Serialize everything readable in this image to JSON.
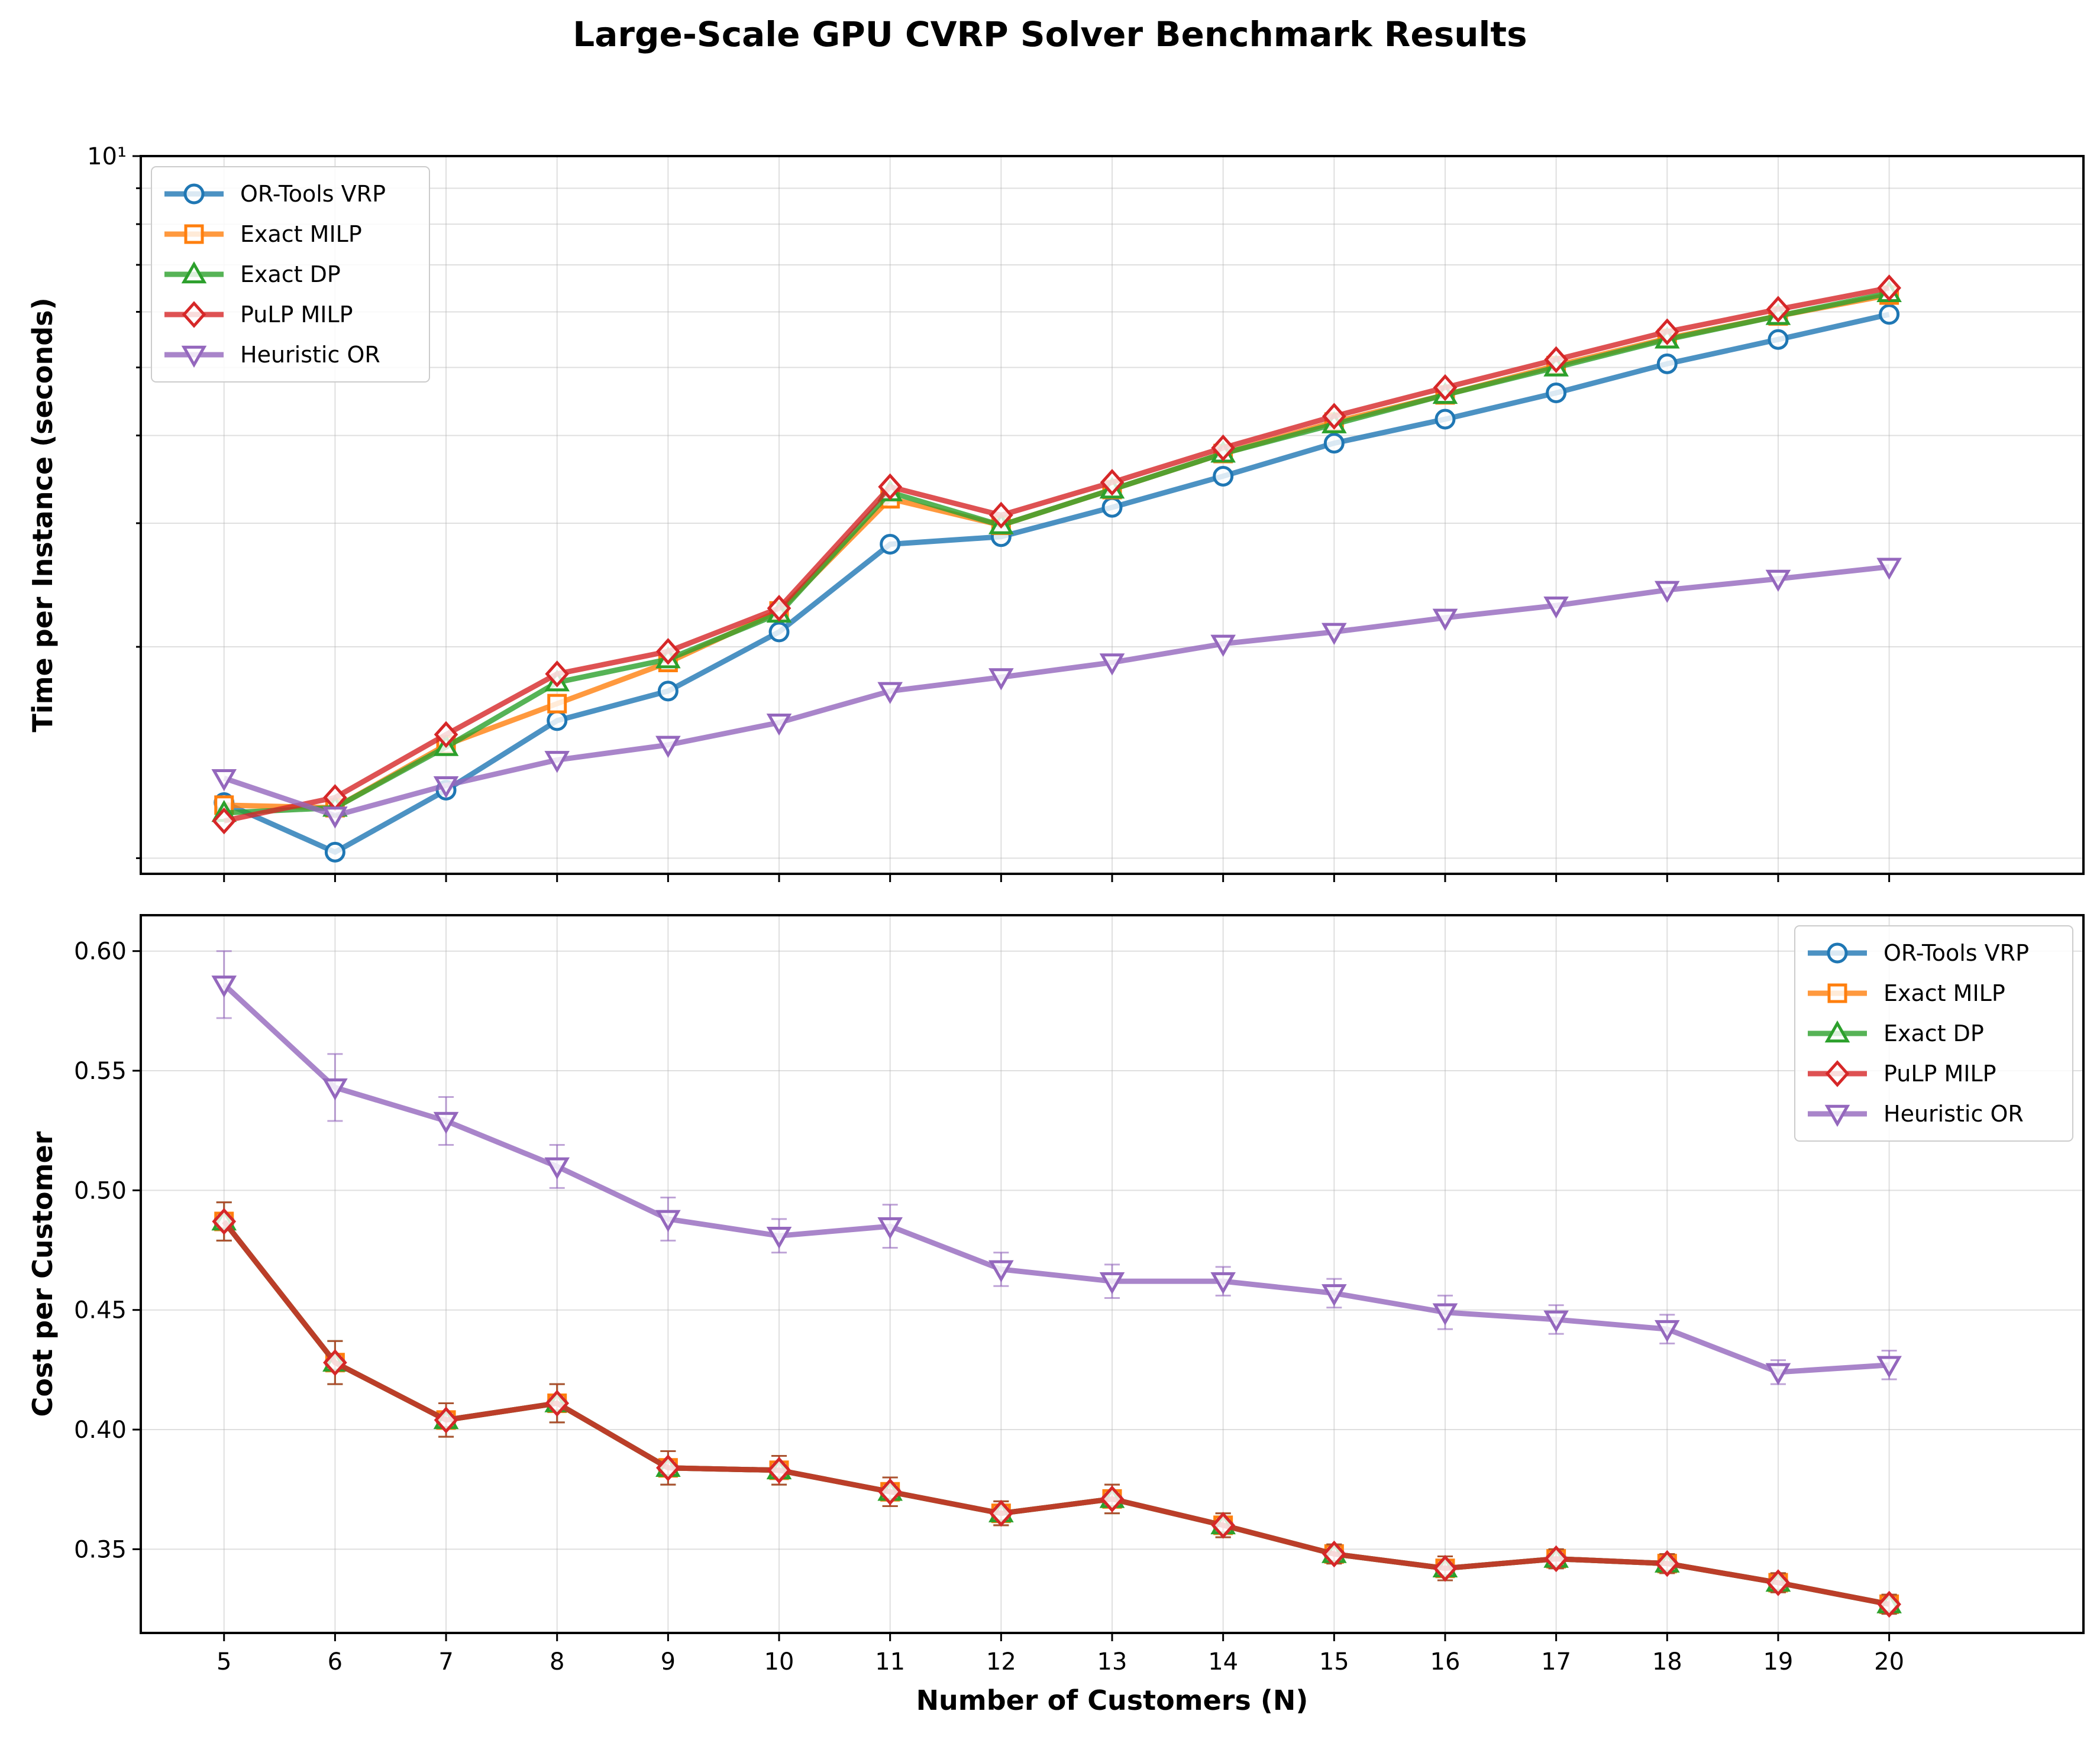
{
  "title": "Large-Scale GPU CVRP Solver Benchmark Results",
  "chart_data": [
    {
      "type": "line",
      "xlabel": "",
      "ylabel": "Time per Instance (seconds)",
      "yscale": "log",
      "ylim": [
        0.95,
        10.0
      ],
      "yticks": [
        {
          "value": 10,
          "label": "10¹"
        }
      ],
      "grid": true,
      "legend": "top-left",
      "x": [
        5,
        6,
        7,
        8,
        9,
        10,
        11,
        12,
        13,
        14,
        15,
        16,
        17,
        18,
        19,
        20
      ],
      "series": [
        {
          "name": "OR-Tools VRP",
          "color": "#1f77b4",
          "marker": "circle",
          "values": [
            1.2,
            1.02,
            1.25,
            1.57,
            1.73,
            2.1,
            2.8,
            2.87,
            3.16,
            3.5,
            3.9,
            4.22,
            4.6,
            5.06,
            5.48,
            5.95
          ]
        },
        {
          "name": "Exact MILP",
          "color": "#ff7f0e",
          "marker": "square",
          "values": [
            1.19,
            1.18,
            1.45,
            1.66,
            1.9,
            2.25,
            3.25,
            2.98,
            3.35,
            3.77,
            4.18,
            4.57,
            5.03,
            5.5,
            5.92,
            6.34
          ]
        },
        {
          "name": "Exact DP",
          "color": "#2ca02c",
          "marker": "triangle-up",
          "values": [
            1.16,
            1.18,
            1.44,
            1.78,
            1.92,
            2.23,
            3.32,
            2.98,
            3.35,
            3.77,
            4.15,
            4.57,
            5.0,
            5.48,
            5.92,
            6.38
          ]
        },
        {
          "name": "PuLP MILP",
          "color": "#d62728",
          "marker": "diamond",
          "values": [
            1.13,
            1.22,
            1.5,
            1.83,
            1.97,
            2.27,
            3.38,
            3.08,
            3.43,
            3.84,
            4.26,
            4.68,
            5.13,
            5.62,
            6.05,
            6.49
          ]
        },
        {
          "name": "Heuristic OR",
          "color": "#9467bd",
          "marker": "triangle-down",
          "values": [
            1.3,
            1.15,
            1.27,
            1.38,
            1.45,
            1.56,
            1.73,
            1.81,
            1.9,
            2.02,
            2.1,
            2.2,
            2.29,
            2.41,
            2.5,
            2.6
          ]
        }
      ]
    },
    {
      "type": "line",
      "xlabel": "Number of Customers (N)",
      "ylabel": "Cost per Customer",
      "ylim": [
        0.315,
        0.615
      ],
      "yticks": [
        {
          "value": 0.35,
          "label": "0.35"
        },
        {
          "value": 0.4,
          "label": "0.40"
        },
        {
          "value": 0.45,
          "label": "0.45"
        },
        {
          "value": 0.5,
          "label": "0.50"
        },
        {
          "value": 0.55,
          "label": "0.55"
        },
        {
          "value": 0.6,
          "label": "0.60"
        }
      ],
      "xticks": [
        "5",
        "6",
        "7",
        "8",
        "9",
        "10",
        "11",
        "12",
        "13",
        "14",
        "15",
        "16",
        "17",
        "18",
        "19",
        "20"
      ],
      "grid": true,
      "legend": "top-right",
      "x": [
        5,
        6,
        7,
        8,
        9,
        10,
        11,
        12,
        13,
        14,
        15,
        16,
        17,
        18,
        19,
        20
      ],
      "series": [
        {
          "name": "OR-Tools VRP",
          "color": "#1f77b4",
          "marker": "circle",
          "values": [
            0.487,
            0.428,
            0.404,
            0.411,
            0.384,
            0.383,
            0.374,
            0.365,
            0.371,
            0.36,
            0.348,
            0.342,
            0.346,
            0.344,
            0.336,
            0.327
          ],
          "errors": [
            0.008,
            0.009,
            0.007,
            0.008,
            0.007,
            0.006,
            0.006,
            0.005,
            0.006,
            0.005,
            0.004,
            0.005,
            0.004,
            0.004,
            0.004,
            0.004
          ]
        },
        {
          "name": "Exact MILP",
          "color": "#ff7f0e",
          "marker": "square",
          "values": [
            0.487,
            0.428,
            0.404,
            0.411,
            0.384,
            0.383,
            0.374,
            0.365,
            0.371,
            0.36,
            0.348,
            0.342,
            0.346,
            0.344,
            0.336,
            0.327
          ],
          "errors": [
            0.008,
            0.009,
            0.007,
            0.008,
            0.007,
            0.006,
            0.006,
            0.005,
            0.006,
            0.005,
            0.004,
            0.005,
            0.004,
            0.004,
            0.004,
            0.004
          ]
        },
        {
          "name": "Exact DP",
          "color": "#2ca02c",
          "marker": "triangle-up",
          "values": [
            0.487,
            0.428,
            0.404,
            0.411,
            0.384,
            0.383,
            0.374,
            0.365,
            0.371,
            0.36,
            0.348,
            0.342,
            0.346,
            0.344,
            0.336,
            0.327
          ],
          "errors": [
            0.008,
            0.009,
            0.007,
            0.008,
            0.007,
            0.006,
            0.006,
            0.005,
            0.006,
            0.005,
            0.004,
            0.005,
            0.004,
            0.004,
            0.004,
            0.004
          ]
        },
        {
          "name": "PuLP MILP",
          "color": "#d62728",
          "marker": "diamond",
          "values": [
            0.487,
            0.428,
            0.404,
            0.411,
            0.384,
            0.383,
            0.374,
            0.365,
            0.371,
            0.36,
            0.348,
            0.342,
            0.346,
            0.344,
            0.336,
            0.327
          ],
          "errors": [
            0.008,
            0.009,
            0.007,
            0.008,
            0.007,
            0.006,
            0.006,
            0.005,
            0.006,
            0.005,
            0.004,
            0.005,
            0.004,
            0.004,
            0.004,
            0.004
          ]
        },
        {
          "name": "Heuristic OR",
          "color": "#9467bd",
          "marker": "triangle-down",
          "values": [
            0.586,
            0.543,
            0.529,
            0.51,
            0.488,
            0.481,
            0.485,
            0.467,
            0.462,
            0.462,
            0.457,
            0.449,
            0.446,
            0.442,
            0.424,
            0.427
          ],
          "errors": [
            0.014,
            0.014,
            0.01,
            0.009,
            0.009,
            0.007,
            0.009,
            0.007,
            0.007,
            0.006,
            0.006,
            0.007,
            0.006,
            0.006,
            0.005,
            0.006
          ]
        }
      ]
    }
  ]
}
